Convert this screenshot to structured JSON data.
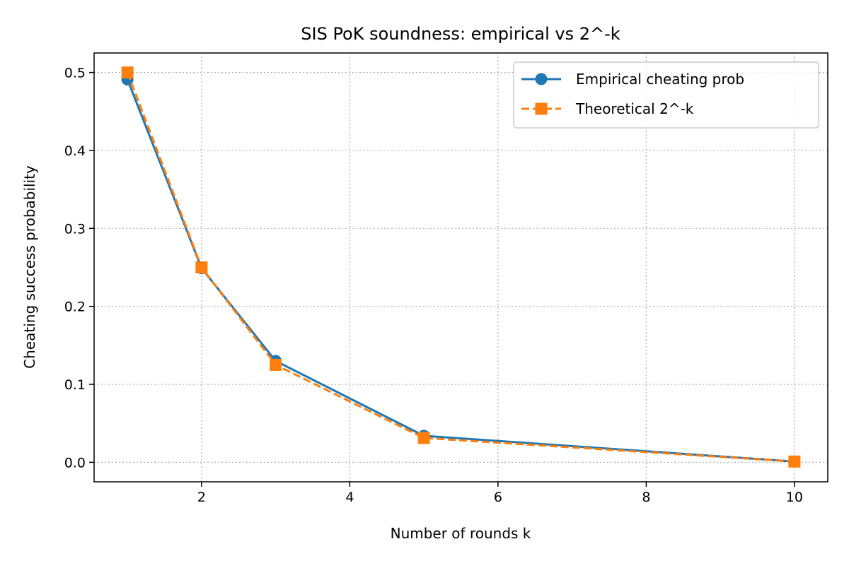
{
  "chart_data": {
    "type": "line",
    "title": "SIS PoK soundness: empirical vs 2^-k",
    "xlabel": "Number of rounds k",
    "ylabel": "Cheating success probability",
    "xlim": [
      0.55,
      10.45
    ],
    "ylim": [
      -0.025,
      0.525
    ],
    "xticks": [
      2,
      4,
      6,
      8,
      10
    ],
    "yticks": [
      0.0,
      0.1,
      0.2,
      0.3,
      0.4,
      0.5
    ],
    "ytick_labels": [
      "0.0",
      "0.1",
      "0.2",
      "0.3",
      "0.4",
      "0.5"
    ],
    "grid": true,
    "legend_position": "top-right",
    "x": [
      1,
      2,
      3,
      5,
      10
    ],
    "series": [
      {
        "name": "Empirical cheating prob",
        "values": [
          0.491,
          0.249,
          0.13,
          0.034,
          0.001
        ],
        "color": "#1f77b4",
        "marker": "circle",
        "linestyle": "solid"
      },
      {
        "name": "Theoretical 2^-k",
        "values": [
          0.5,
          0.25,
          0.125,
          0.03125,
          0.000977
        ],
        "color": "#ff7f0e",
        "marker": "square",
        "linestyle": "dashed"
      }
    ]
  }
}
